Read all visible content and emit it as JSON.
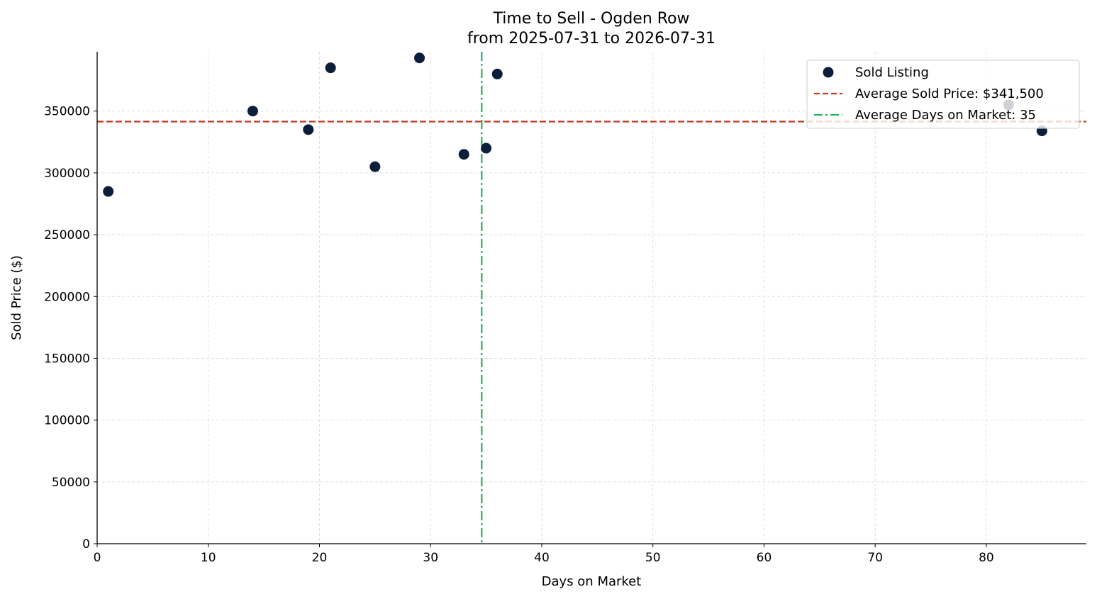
{
  "chart_data": {
    "type": "scatter",
    "title": "Time to Sell - Ogden Row",
    "subtitle": "from 2025-07-31 to 2026-07-31",
    "xlabel": "Days on Market",
    "ylabel": "Sold Price ($)",
    "xlim": [
      0,
      89
    ],
    "ylim": [
      0,
      398000
    ],
    "xticks": [
      0,
      10,
      20,
      30,
      40,
      50,
      60,
      70,
      80
    ],
    "yticks": [
      0,
      50000,
      100000,
      150000,
      200000,
      250000,
      300000,
      350000
    ],
    "grid": true,
    "legend_position": "top-right",
    "series": [
      {
        "name": "Sold Listing",
        "color": "#0b1f3a",
        "points": [
          {
            "x": 1,
            "y": 285000
          },
          {
            "x": 14,
            "y": 350000
          },
          {
            "x": 19,
            "y": 335000
          },
          {
            "x": 21,
            "y": 385000
          },
          {
            "x": 25,
            "y": 305000
          },
          {
            "x": 29,
            "y": 393000
          },
          {
            "x": 33,
            "y": 315000
          },
          {
            "x": 35,
            "y": 320000
          },
          {
            "x": 36,
            "y": 380000
          },
          {
            "x": 82,
            "y": 355000
          },
          {
            "x": 85,
            "y": 334000
          }
        ]
      }
    ],
    "reference_lines": [
      {
        "name": "Average Sold Price: $341,500",
        "orientation": "horizontal",
        "value": 341500,
        "color": "#c0391b",
        "style": "dashed"
      },
      {
        "name": "Average Days on Market: 35",
        "orientation": "vertical",
        "value": 34.6,
        "color": "#27ae60",
        "style": "dashdot"
      }
    ]
  }
}
